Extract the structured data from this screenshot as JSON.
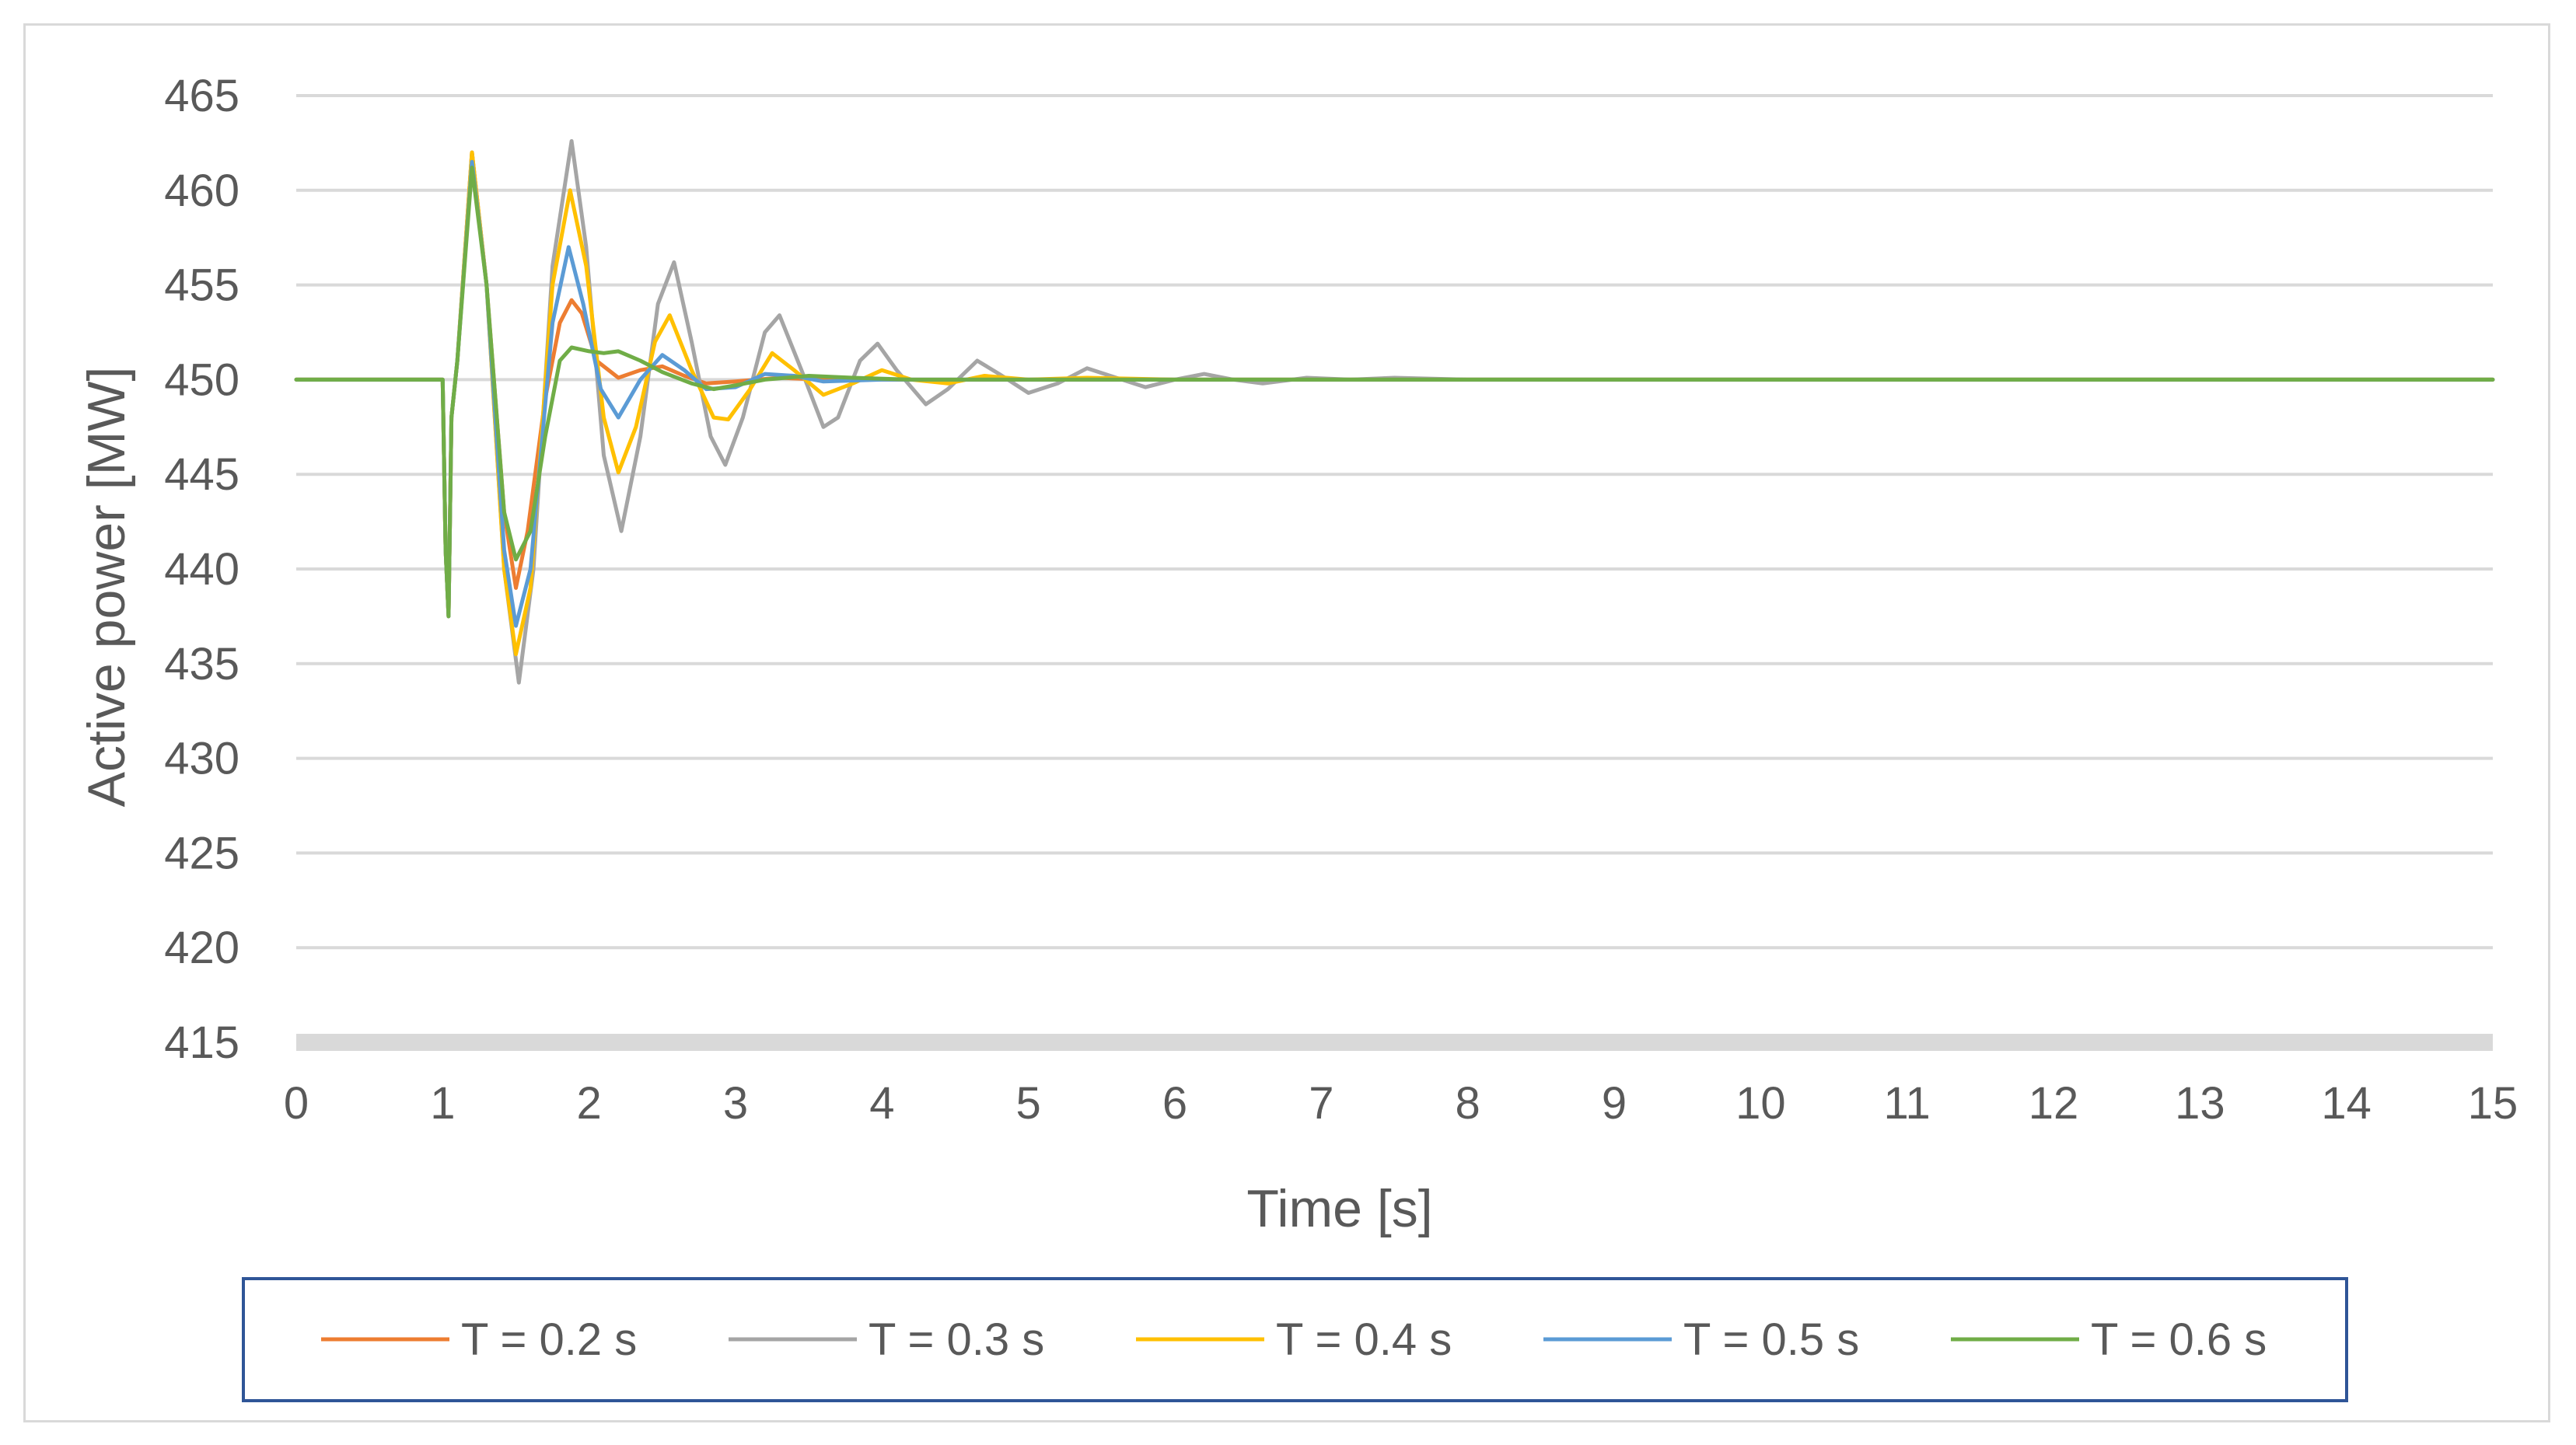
{
  "chart_data": {
    "type": "line",
    "title": "",
    "xlabel": "Time [s]",
    "ylabel": "Active power [MW]",
    "xlim": [
      0,
      15
    ],
    "ylim": [
      415,
      465
    ],
    "x_ticks": [
      0,
      1,
      2,
      3,
      4,
      5,
      6,
      7,
      8,
      9,
      10,
      11,
      12,
      13,
      14,
      15
    ],
    "x_tick_labels": [
      "0",
      "1",
      "2",
      "3",
      "4",
      "5",
      "6",
      "7",
      "8",
      "9",
      "10",
      "11",
      "12",
      "13",
      "14",
      "15"
    ],
    "y_ticks": [
      415,
      420,
      425,
      430,
      435,
      440,
      445,
      450,
      455,
      460,
      465
    ],
    "y_tick_labels": [
      "415",
      "420",
      "425",
      "430",
      "435",
      "440",
      "445",
      "450",
      "455",
      "460",
      "465"
    ],
    "grid": true,
    "legend_position": "bottom",
    "series": [
      {
        "name": "T = 0.2 s",
        "color": "#ED7D31",
        "points": [
          [
            0,
            450
          ],
          [
            1.0,
            450
          ],
          [
            1.02,
            441
          ],
          [
            1.04,
            437.5
          ],
          [
            1.06,
            448
          ],
          [
            1.1,
            451
          ],
          [
            1.2,
            462
          ],
          [
            1.3,
            455
          ],
          [
            1.42,
            443
          ],
          [
            1.5,
            439
          ],
          [
            1.58,
            442
          ],
          [
            1.7,
            449
          ],
          [
            1.8,
            453
          ],
          [
            1.88,
            454.2
          ],
          [
            1.95,
            453.5
          ],
          [
            2.05,
            451
          ],
          [
            2.2,
            450.1
          ],
          [
            2.35,
            450.5
          ],
          [
            2.5,
            450.7
          ],
          [
            2.65,
            450.2
          ],
          [
            2.8,
            449.8
          ],
          [
            3.0,
            449.9
          ],
          [
            3.3,
            450.1
          ],
          [
            3.6,
            450
          ],
          [
            15,
            450
          ]
        ]
      },
      {
        "name": "T = 0.3 s",
        "color": "#A5A5A5",
        "points": [
          [
            0,
            450
          ],
          [
            1.0,
            450
          ],
          [
            1.02,
            441
          ],
          [
            1.04,
            437.5
          ],
          [
            1.06,
            448
          ],
          [
            1.1,
            451
          ],
          [
            1.2,
            462
          ],
          [
            1.3,
            455
          ],
          [
            1.42,
            440
          ],
          [
            1.52,
            434
          ],
          [
            1.62,
            440
          ],
          [
            1.75,
            456
          ],
          [
            1.88,
            462.6
          ],
          [
            1.98,
            457
          ],
          [
            2.1,
            446
          ],
          [
            2.22,
            442
          ],
          [
            2.35,
            447
          ],
          [
            2.47,
            454
          ],
          [
            2.58,
            456.2
          ],
          [
            2.7,
            452
          ],
          [
            2.83,
            447
          ],
          [
            2.93,
            445.5
          ],
          [
            3.05,
            448
          ],
          [
            3.2,
            452.5
          ],
          [
            3.3,
            453.4
          ],
          [
            3.45,
            450.5
          ],
          [
            3.6,
            447.5
          ],
          [
            3.7,
            448
          ],
          [
            3.85,
            451
          ],
          [
            3.97,
            451.9
          ],
          [
            4.1,
            450.5
          ],
          [
            4.3,
            448.7
          ],
          [
            4.45,
            449.5
          ],
          [
            4.65,
            451
          ],
          [
            4.8,
            450.3
          ],
          [
            5.0,
            449.3
          ],
          [
            5.2,
            449.8
          ],
          [
            5.4,
            450.6
          ],
          [
            5.6,
            450.1
          ],
          [
            5.8,
            449.6
          ],
          [
            6.0,
            450
          ],
          [
            6.2,
            450.3
          ],
          [
            6.4,
            450
          ],
          [
            6.6,
            449.8
          ],
          [
            6.9,
            450.1
          ],
          [
            7.2,
            450
          ],
          [
            7.5,
            450.1
          ],
          [
            8.0,
            450
          ],
          [
            15,
            450
          ]
        ]
      },
      {
        "name": "T = 0.4 s",
        "color": "#FFC000",
        "points": [
          [
            0,
            450
          ],
          [
            1.0,
            450
          ],
          [
            1.02,
            441
          ],
          [
            1.04,
            437.5
          ],
          [
            1.06,
            448
          ],
          [
            1.1,
            451
          ],
          [
            1.2,
            462
          ],
          [
            1.3,
            455
          ],
          [
            1.42,
            440
          ],
          [
            1.5,
            435.5
          ],
          [
            1.6,
            439
          ],
          [
            1.75,
            455
          ],
          [
            1.87,
            460
          ],
          [
            1.98,
            456
          ],
          [
            2.1,
            448
          ],
          [
            2.2,
            445.1
          ],
          [
            2.32,
            447.5
          ],
          [
            2.45,
            452
          ],
          [
            2.55,
            453.4
          ],
          [
            2.7,
            450.5
          ],
          [
            2.85,
            448
          ],
          [
            2.95,
            447.9
          ],
          [
            3.1,
            449.5
          ],
          [
            3.25,
            451.4
          ],
          [
            3.4,
            450.5
          ],
          [
            3.6,
            449.2
          ],
          [
            3.8,
            449.8
          ],
          [
            4.0,
            450.5
          ],
          [
            4.2,
            450
          ],
          [
            4.45,
            449.8
          ],
          [
            4.7,
            450.2
          ],
          [
            5.0,
            450
          ],
          [
            5.4,
            450.1
          ],
          [
            6.0,
            450
          ],
          [
            15,
            450
          ]
        ]
      },
      {
        "name": "T = 0.5 s",
        "color": "#5B9BD5",
        "points": [
          [
            0,
            450
          ],
          [
            1.0,
            450
          ],
          [
            1.02,
            441
          ],
          [
            1.04,
            437.5
          ],
          [
            1.06,
            448
          ],
          [
            1.1,
            451
          ],
          [
            1.2,
            461.5
          ],
          [
            1.3,
            455
          ],
          [
            1.42,
            441
          ],
          [
            1.5,
            437
          ],
          [
            1.6,
            440
          ],
          [
            1.75,
            453
          ],
          [
            1.86,
            457
          ],
          [
            1.96,
            454
          ],
          [
            2.08,
            449.5
          ],
          [
            2.2,
            448
          ],
          [
            2.35,
            450
          ],
          [
            2.5,
            451.3
          ],
          [
            2.65,
            450.5
          ],
          [
            2.8,
            449.5
          ],
          [
            3.0,
            449.6
          ],
          [
            3.2,
            450.3
          ],
          [
            3.4,
            450.2
          ],
          [
            3.6,
            449.9
          ],
          [
            4.0,
            450
          ],
          [
            15,
            450
          ]
        ]
      },
      {
        "name": "T = 0.6 s",
        "color": "#70AD47",
        "points": [
          [
            0,
            450
          ],
          [
            1.0,
            450
          ],
          [
            1.02,
            441
          ],
          [
            1.04,
            437.5
          ],
          [
            1.06,
            448
          ],
          [
            1.1,
            451
          ],
          [
            1.2,
            461.2
          ],
          [
            1.3,
            455
          ],
          [
            1.42,
            443
          ],
          [
            1.5,
            440.5
          ],
          [
            1.6,
            442
          ],
          [
            1.7,
            447
          ],
          [
            1.8,
            451
          ],
          [
            1.88,
            451.7
          ],
          [
            2.0,
            451.5
          ],
          [
            2.1,
            451.4
          ],
          [
            2.2,
            451.5
          ],
          [
            2.35,
            451
          ],
          [
            2.5,
            450.4
          ],
          [
            2.7,
            449.8
          ],
          [
            2.85,
            449.5
          ],
          [
            3.0,
            449.7
          ],
          [
            3.2,
            450
          ],
          [
            3.5,
            450.2
          ],
          [
            3.8,
            450.1
          ],
          [
            4.2,
            450
          ],
          [
            15,
            450
          ]
        ]
      }
    ]
  }
}
